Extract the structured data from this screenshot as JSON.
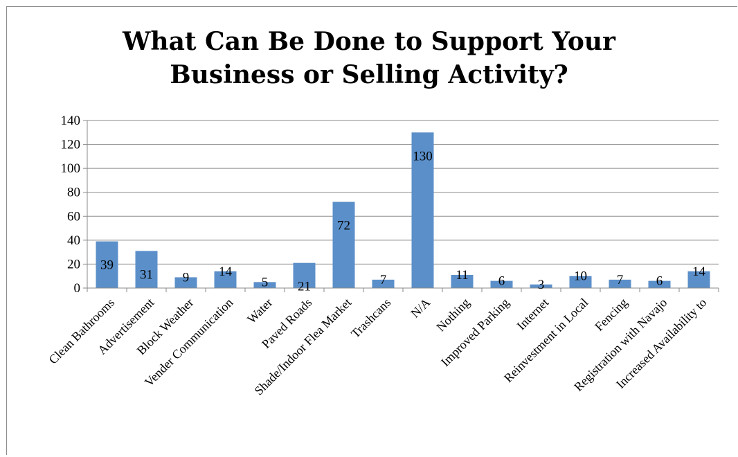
{
  "chart_data": {
    "type": "bar",
    "title_lines": [
      "What Can Be Done to Support Your",
      "Business or Selling Activity?"
    ],
    "categories": [
      "Clean Bathrooms",
      "Advertisement",
      "Block Weather",
      "Vender Communication",
      "Water",
      "Paved Roads",
      "Shade/Indoor Flea Market",
      "Trashcans",
      "N/A",
      "Nothing",
      "Improved Parking",
      "Internet",
      "Reinvestment in Local",
      "Fencing",
      "Registration with Navajo",
      "Increased Availability to"
    ],
    "values": [
      39,
      31,
      9,
      14,
      5,
      21,
      72,
      7,
      130,
      11,
      6,
      3,
      10,
      7,
      6,
      14
    ],
    "ylim": [
      0,
      140
    ],
    "yticks": [
      0,
      20,
      40,
      60,
      80,
      100,
      120,
      140
    ],
    "grid": true,
    "bar_color": "#5b8fc9",
    "xlabel": "",
    "ylabel": ""
  }
}
